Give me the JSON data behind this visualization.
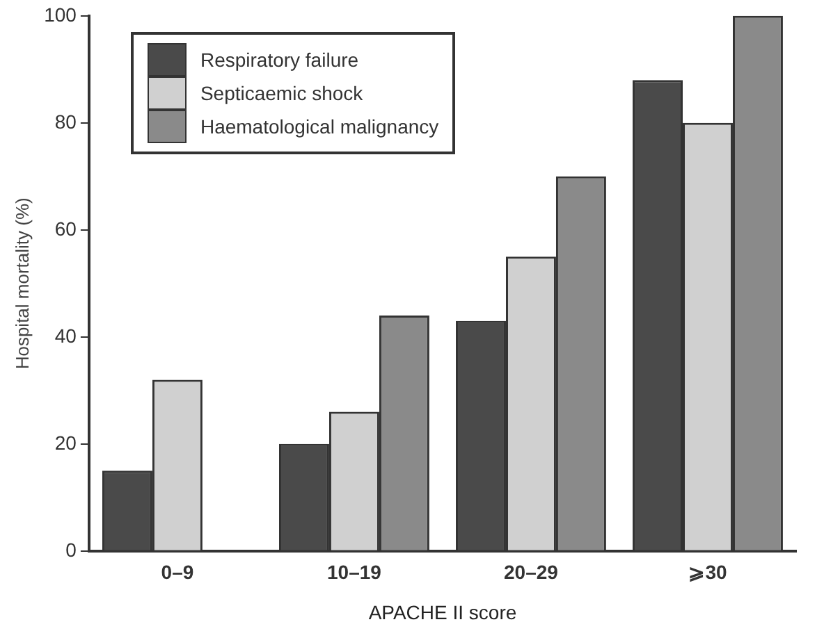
{
  "chart_data": {
    "type": "bar",
    "xlabel": "APACHE II score",
    "ylabel": "Hospital mortality (%)",
    "categories": [
      "0–9",
      "10–19",
      "20–29",
      "⩾30"
    ],
    "series": [
      {
        "name": "Respiratory failure",
        "color": "#4a4a4a",
        "values": [
          15,
          20,
          43,
          88
        ]
      },
      {
        "name": "Septicaemic shock",
        "color": "#d0d0d0",
        "values": [
          32,
          26,
          55,
          80
        ]
      },
      {
        "name": "Haematological malignancy",
        "color": "#8a8a8a",
        "values": [
          null,
          44,
          70,
          100
        ]
      }
    ],
    "ylim": [
      0,
      100
    ],
    "yticks": [
      0,
      20,
      40,
      60,
      80,
      100
    ],
    "grid": false,
    "legend": "top left"
  }
}
